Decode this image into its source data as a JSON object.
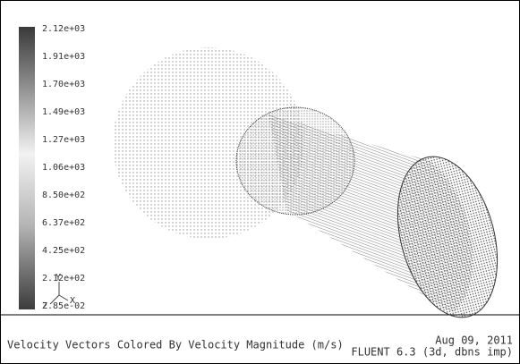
{
  "colorbar": {
    "labels": [
      "2.12e+03",
      "1.91e+03",
      "1.70e+03",
      "1.49e+03",
      "1.27e+03",
      "1.06e+03",
      "8.50e+02",
      "6.37e+02",
      "4.25e+02",
      "2.12e+02",
      "2.85e-02"
    ]
  },
  "axes": {
    "y": "Y",
    "x": "X",
    "z": "Z"
  },
  "footer": {
    "title": "Velocity Vectors Colored By Velocity Magnitude (m/s)",
    "date": "Aug 09, 2011",
    "software": "FLUENT 6.3 (3d, dbns imp)"
  }
}
